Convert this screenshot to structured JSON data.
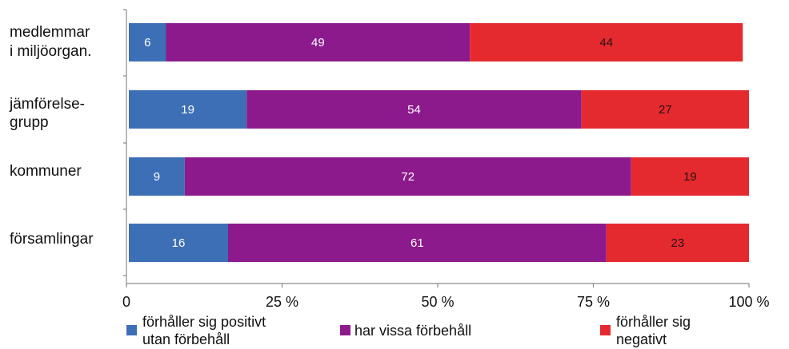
{
  "chart_data": {
    "type": "bar",
    "orientation": "horizontal",
    "stacked": true,
    "categories": [
      [
        "medlemmar",
        "i miljöorgan."
      ],
      [
        "jämförelse-",
        "grupp"
      ],
      [
        "kommuner"
      ],
      [
        "församlingar"
      ]
    ],
    "series": [
      {
        "name": [
          "förhåller sig positivt",
          "utan förbehåll"
        ],
        "values": [
          6,
          19,
          9,
          16
        ],
        "color": "#3d6fb6"
      },
      {
        "name": [
          "har vissa förbehåll"
        ],
        "values": [
          49,
          54,
          72,
          61
        ],
        "color": "#8c1a8c"
      },
      {
        "name": [
          "förhåller sig",
          "negativt"
        ],
        "values": [
          44,
          27,
          19,
          23
        ],
        "color": "#e52a2f"
      }
    ],
    "xlim": [
      0,
      100
    ],
    "x_ticks": [
      {
        "value": 0,
        "label": "0"
      },
      {
        "value": 25,
        "label": "25 %"
      },
      {
        "value": 50,
        "label": "50 %"
      },
      {
        "value": 75,
        "label": "75 %"
      },
      {
        "value": 100,
        "label": "100 %"
      }
    ],
    "legend_position": "bottom",
    "grid": false
  }
}
